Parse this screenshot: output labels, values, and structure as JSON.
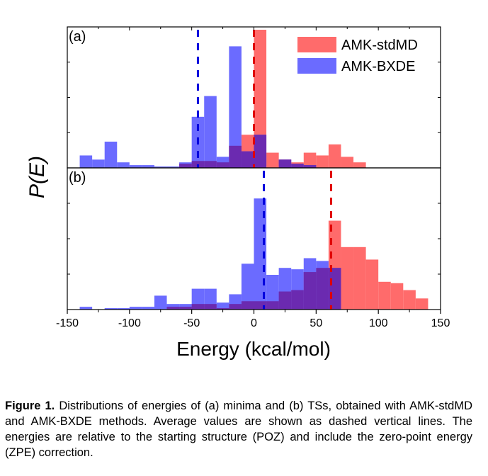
{
  "chart_data": {
    "type": "histogram",
    "xlabel": "Energy (kcal/mol)",
    "ylabel": "P(E)",
    "xlim": [
      -150,
      150
    ],
    "xticks": [
      -150,
      -100,
      -50,
      0,
      50,
      100,
      150
    ],
    "bin_width": 10,
    "grid": false,
    "legend": {
      "location": "top-right",
      "panel": "a"
    },
    "colors": {
      "stdMD": "#ff6b6b",
      "BXDE": "#6b6bff",
      "overlap": "#6b2ab0",
      "mean_stdMD": "#e00000",
      "mean_BXDE": "#0000dd"
    },
    "panels": [
      {
        "label": "(a)",
        "ylim": [
          0,
          1.0
        ],
        "series": [
          {
            "name": "AMK-stdMD",
            "bins": [
              {
                "x0": -140,
                "x1": -130,
                "y": 0.0
              },
              {
                "x0": -130,
                "x1": -120,
                "y": 0.0
              },
              {
                "x0": -120,
                "x1": -110,
                "y": 0.0
              },
              {
                "x0": -110,
                "x1": -100,
                "y": 0.0
              },
              {
                "x0": -100,
                "x1": -90,
                "y": 0.0
              },
              {
                "x0": -90,
                "x1": -80,
                "y": 0.0
              },
              {
                "x0": -80,
                "x1": -70,
                "y": 0.0
              },
              {
                "x0": -70,
                "x1": -60,
                "y": 0.0
              },
              {
                "x0": -60,
                "x1": -50,
                "y": 0.03
              },
              {
                "x0": -50,
                "x1": -40,
                "y": 0.05
              },
              {
                "x0": -40,
                "x1": -30,
                "y": 0.05
              },
              {
                "x0": -30,
                "x1": -20,
                "y": 0.04
              },
              {
                "x0": -20,
                "x1": -10,
                "y": 0.16
              },
              {
                "x0": -10,
                "x1": 0,
                "y": 0.24
              },
              {
                "x0": 0,
                "x1": 10,
                "y": 1.0
              },
              {
                "x0": 10,
                "x1": 20,
                "y": 0.11
              },
              {
                "x0": 20,
                "x1": 30,
                "y": 0.06
              },
              {
                "x0": 30,
                "x1": 40,
                "y": 0.04
              },
              {
                "x0": 40,
                "x1": 50,
                "y": 0.11
              },
              {
                "x0": 50,
                "x1": 60,
                "y": 0.09
              },
              {
                "x0": 60,
                "x1": 70,
                "y": 0.17
              },
              {
                "x0": 70,
                "x1": 80,
                "y": 0.08
              },
              {
                "x0": 80,
                "x1": 90,
                "y": 0.04
              }
            ],
            "mean": 0
          },
          {
            "name": "AMK-BXDE",
            "bins": [
              {
                "x0": -140,
                "x1": -130,
                "y": 0.09
              },
              {
                "x0": -130,
                "x1": -120,
                "y": 0.06
              },
              {
                "x0": -120,
                "x1": -110,
                "y": 0.19
              },
              {
                "x0": -110,
                "x1": -100,
                "y": 0.04
              },
              {
                "x0": -100,
                "x1": -90,
                "y": 0.02
              },
              {
                "x0": -90,
                "x1": -80,
                "y": 0.02
              },
              {
                "x0": -80,
                "x1": -70,
                "y": 0.01
              },
              {
                "x0": -70,
                "x1": -60,
                "y": 0.01
              },
              {
                "x0": -60,
                "x1": -50,
                "y": 0.04
              },
              {
                "x0": -50,
                "x1": -40,
                "y": 0.37
              },
              {
                "x0": -40,
                "x1": -30,
                "y": 0.52
              },
              {
                "x0": -30,
                "x1": -20,
                "y": 0.08
              },
              {
                "x0": -20,
                "x1": -10,
                "y": 0.88
              },
              {
                "x0": -10,
                "x1": 0,
                "y": 0.12
              },
              {
                "x0": 0,
                "x1": 10,
                "y": 0.24
              },
              {
                "x0": 10,
                "x1": 20,
                "y": 0.0
              },
              {
                "x0": 20,
                "x1": 30,
                "y": 0.06
              },
              {
                "x0": 30,
                "x1": 40,
                "y": 0.03
              },
              {
                "x0": 40,
                "x1": 50,
                "y": 0.02
              },
              {
                "x0": 50,
                "x1": 60,
                "y": 0.0
              }
            ],
            "mean": -45
          }
        ]
      },
      {
        "label": "(b)",
        "ylim": [
          0,
          1.0
        ],
        "series": [
          {
            "name": "AMK-stdMD",
            "bins": [
              {
                "x0": -140,
                "x1": -130,
                "y": 0.0
              },
              {
                "x0": -80,
                "x1": -70,
                "y": 0.0
              },
              {
                "x0": -70,
                "x1": -60,
                "y": 0.02
              },
              {
                "x0": -60,
                "x1": -50,
                "y": 0.02
              },
              {
                "x0": -50,
                "x1": -40,
                "y": 0.04
              },
              {
                "x0": -40,
                "x1": -30,
                "y": 0.04
              },
              {
                "x0": -30,
                "x1": -20,
                "y": 0.01
              },
              {
                "x0": -20,
                "x1": -10,
                "y": 0.04
              },
              {
                "x0": -10,
                "x1": 0,
                "y": 0.06
              },
              {
                "x0": 0,
                "x1": 10,
                "y": 0.06
              },
              {
                "x0": 10,
                "x1": 20,
                "y": 0.06
              },
              {
                "x0": 20,
                "x1": 30,
                "y": 0.13
              },
              {
                "x0": 30,
                "x1": 40,
                "y": 0.14
              },
              {
                "x0": 40,
                "x1": 50,
                "y": 0.27
              },
              {
                "x0": 50,
                "x1": 60,
                "y": 0.3
              },
              {
                "x0": 60,
                "x1": 70,
                "y": 0.64
              },
              {
                "x0": 70,
                "x1": 80,
                "y": 0.45
              },
              {
                "x0": 80,
                "x1": 90,
                "y": 0.45
              },
              {
                "x0": 90,
                "x1": 100,
                "y": 0.36
              },
              {
                "x0": 100,
                "x1": 110,
                "y": 0.2
              },
              {
                "x0": 110,
                "x1": 120,
                "y": 0.19
              },
              {
                "x0": 120,
                "x1": 130,
                "y": 0.14
              },
              {
                "x0": 130,
                "x1": 140,
                "y": 0.08
              }
            ],
            "mean": 62
          },
          {
            "name": "AMK-BXDE",
            "bins": [
              {
                "x0": -140,
                "x1": -130,
                "y": 0.02
              },
              {
                "x0": -130,
                "x1": -120,
                "y": 0.0
              },
              {
                "x0": -120,
                "x1": -110,
                "y": 0.01
              },
              {
                "x0": -110,
                "x1": -100,
                "y": 0.01
              },
              {
                "x0": -100,
                "x1": -90,
                "y": 0.02
              },
              {
                "x0": -90,
                "x1": -80,
                "y": 0.02
              },
              {
                "x0": -80,
                "x1": -70,
                "y": 0.1
              },
              {
                "x0": -70,
                "x1": -60,
                "y": 0.04
              },
              {
                "x0": -60,
                "x1": -50,
                "y": 0.04
              },
              {
                "x0": -50,
                "x1": -40,
                "y": 0.15
              },
              {
                "x0": -40,
                "x1": -30,
                "y": 0.15
              },
              {
                "x0": -30,
                "x1": -20,
                "y": 0.05
              },
              {
                "x0": -20,
                "x1": -10,
                "y": 0.11
              },
              {
                "x0": -10,
                "x1": 0,
                "y": 0.33
              },
              {
                "x0": 0,
                "x1": 10,
                "y": 0.8
              },
              {
                "x0": 10,
                "x1": 20,
                "y": 0.25
              },
              {
                "x0": 20,
                "x1": 30,
                "y": 0.3
              },
              {
                "x0": 30,
                "x1": 40,
                "y": 0.29
              },
              {
                "x0": 40,
                "x1": 50,
                "y": 0.37
              },
              {
                "x0": 50,
                "x1": 60,
                "y": 0.35
              },
              {
                "x0": 60,
                "x1": 70,
                "y": 0.3
              },
              {
                "x0": 70,
                "x1": 80,
                "y": 0.0
              }
            ],
            "mean": 8
          }
        ]
      }
    ]
  },
  "caption": {
    "label": "Figure 1.",
    "text": " Distributions of energies of (a) minima and (b) TSs, obtained with AMK-stdMD and AMK-BXDE methods. Average values are shown as dashed vertical lines. The energies are relative to the starting structure (POZ) and include the zero-point energy (ZPE) correction."
  }
}
